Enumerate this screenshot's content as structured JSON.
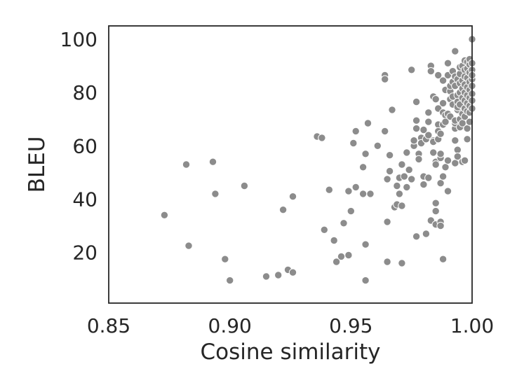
{
  "chart_data": {
    "type": "scatter",
    "title": "",
    "xlabel": "Cosine similarity",
    "ylabel": "BLEU",
    "xlim": [
      0.85,
      1.0
    ],
    "ylim": [
      1,
      105
    ],
    "xticks": [
      "0.85",
      "0.90",
      "0.95",
      "1.00"
    ],
    "xtick_values": [
      0.85,
      0.9,
      0.95,
      1.0
    ],
    "yticks": [
      "20",
      "40",
      "60",
      "80",
      "100"
    ],
    "ytick_values": [
      20,
      40,
      60,
      80,
      100
    ],
    "grid": false,
    "marker_color": "#8c8c8c",
    "points": [
      [
        0.873,
        34
      ],
      [
        0.882,
        53
      ],
      [
        0.883,
        22.5
      ],
      [
        0.893,
        54
      ],
      [
        0.894,
        42
      ],
      [
        0.898,
        17.5
      ],
      [
        0.9,
        9.5
      ],
      [
        0.906,
        45
      ],
      [
        0.915,
        11
      ],
      [
        0.92,
        11.5
      ],
      [
        0.922,
        36
      ],
      [
        0.924,
        13.5
      ],
      [
        0.926,
        12.5
      ],
      [
        0.926,
        41
      ],
      [
        0.936,
        63.5
      ],
      [
        0.938,
        63
      ],
      [
        0.939,
        28.5
      ],
      [
        0.941,
        43.5
      ],
      [
        0.943,
        24.5
      ],
      [
        0.944,
        16.5
      ],
      [
        0.946,
        18.5
      ],
      [
        0.947,
        31
      ],
      [
        0.949,
        19
      ],
      [
        0.949,
        43
      ],
      [
        0.95,
        35.5
      ],
      [
        0.951,
        61
      ],
      [
        0.952,
        65.5
      ],
      [
        0.952,
        44.5
      ],
      [
        0.955,
        52
      ],
      [
        0.955,
        42
      ],
      [
        0.956,
        23
      ],
      [
        0.956,
        9.5
      ],
      [
        0.956,
        57
      ],
      [
        0.957,
        68.5
      ],
      [
        0.958,
        42
      ],
      [
        0.961,
        60
      ],
      [
        0.964,
        86.5
      ],
      [
        0.964,
        85
      ],
      [
        0.964,
        65.5
      ],
      [
        0.965,
        16.5
      ],
      [
        0.965,
        31.5
      ],
      [
        0.965,
        47.5
      ],
      [
        0.966,
        56.5
      ],
      [
        0.966,
        50.5
      ],
      [
        0.967,
        73.5
      ],
      [
        0.968,
        37
      ],
      [
        0.969,
        38
      ],
      [
        0.969,
        45
      ],
      [
        0.97,
        48
      ],
      [
        0.97,
        42
      ],
      [
        0.971,
        37.5
      ],
      [
        0.971,
        53
      ],
      [
        0.971,
        16
      ],
      [
        0.972,
        48.5
      ],
      [
        0.973,
        57.5
      ],
      [
        0.973,
        44.5
      ],
      [
        0.974,
        51
      ],
      [
        0.975,
        88.5
      ],
      [
        0.975,
        47.5
      ],
      [
        0.976,
        60
      ],
      [
        0.976,
        62
      ],
      [
        0.977,
        69.5
      ],
      [
        0.977,
        76.5
      ],
      [
        0.977,
        66.5
      ],
      [
        0.977,
        26
      ],
      [
        0.978,
        57
      ],
      [
        0.978,
        55
      ],
      [
        0.979,
        63
      ],
      [
        0.979,
        61
      ],
      [
        0.98,
        45.5
      ],
      [
        0.98,
        48.5
      ],
      [
        0.98,
        66
      ],
      [
        0.981,
        27
      ],
      [
        0.981,
        62.5
      ],
      [
        0.982,
        72.5
      ],
      [
        0.982,
        69
      ],
      [
        0.982,
        48
      ],
      [
        0.982,
        64
      ],
      [
        0.983,
        90
      ],
      [
        0.983,
        32
      ],
      [
        0.983,
        88
      ],
      [
        0.984,
        57.5
      ],
      [
        0.984,
        62
      ],
      [
        0.984,
        61.5
      ],
      [
        0.984,
        78.5
      ],
      [
        0.985,
        30.5
      ],
      [
        0.985,
        35.5
      ],
      [
        0.985,
        38.5
      ],
      [
        0.985,
        77.5
      ],
      [
        0.985,
        54
      ],
      [
        0.985,
        53
      ],
      [
        0.986,
        74
      ],
      [
        0.986,
        68
      ],
      [
        0.986,
        65.5
      ],
      [
        0.986,
        62.5
      ],
      [
        0.986,
        86.5
      ],
      [
        0.987,
        55.5
      ],
      [
        0.987,
        57
      ],
      [
        0.987,
        64.5
      ],
      [
        0.987,
        31.5
      ],
      [
        0.987,
        30
      ],
      [
        0.987,
        46
      ],
      [
        0.988,
        17.5
      ],
      [
        0.988,
        48.5
      ],
      [
        0.988,
        84.5
      ],
      [
        0.988,
        76
      ],
      [
        0.988,
        72.5
      ],
      [
        0.988,
        68
      ],
      [
        0.989,
        52
      ],
      [
        0.989,
        81
      ],
      [
        0.989,
        71.5
      ],
      [
        0.989,
        69
      ],
      [
        0.99,
        43
      ],
      [
        0.99,
        86.5
      ],
      [
        0.99,
        91
      ],
      [
        0.99,
        72
      ],
      [
        0.99,
        54.5
      ],
      [
        0.991,
        77.5
      ],
      [
        0.991,
        80.5
      ],
      [
        0.991,
        82.5
      ],
      [
        0.991,
        71
      ],
      [
        0.992,
        75.5
      ],
      [
        0.992,
        88
      ],
      [
        0.992,
        84
      ],
      [
        0.992,
        78.5
      ],
      [
        0.993,
        53.5
      ],
      [
        0.993,
        62
      ],
      [
        0.993,
        66.5
      ],
      [
        0.993,
        68.5
      ],
      [
        0.993,
        69.5
      ],
      [
        0.993,
        95.5
      ],
      [
        0.993,
        86
      ],
      [
        0.993,
        82.5
      ],
      [
        0.994,
        85
      ],
      [
        0.994,
        79
      ],
      [
        0.994,
        76.5
      ],
      [
        0.994,
        73.5
      ],
      [
        0.994,
        74.5
      ],
      [
        0.994,
        58.5
      ],
      [
        0.994,
        56
      ],
      [
        0.995,
        80
      ],
      [
        0.995,
        83.5
      ],
      [
        0.995,
        87
      ],
      [
        0.995,
        70
      ],
      [
        0.995,
        67
      ],
      [
        0.995,
        89.5
      ],
      [
        0.995,
        75.5
      ],
      [
        0.996,
        54
      ],
      [
        0.996,
        84.5
      ],
      [
        0.996,
        81.5
      ],
      [
        0.996,
        78
      ],
      [
        0.996,
        90
      ],
      [
        0.996,
        68.5
      ],
      [
        0.996,
        72
      ],
      [
        0.997,
        88.5
      ],
      [
        0.997,
        86
      ],
      [
        0.997,
        83
      ],
      [
        0.997,
        80
      ],
      [
        0.997,
        77
      ],
      [
        0.997,
        74
      ],
      [
        0.997,
        71
      ],
      [
        0.997,
        92
      ],
      [
        0.997,
        54.5
      ],
      [
        0.998,
        89
      ],
      [
        0.998,
        85.5
      ],
      [
        0.998,
        82
      ],
      [
        0.998,
        79
      ],
      [
        0.998,
        76
      ],
      [
        0.998,
        73
      ],
      [
        0.998,
        66.5
      ],
      [
        0.998,
        62.5
      ],
      [
        0.998,
        91.5
      ],
      [
        0.999,
        90.5
      ],
      [
        0.999,
        87.5
      ],
      [
        0.999,
        84
      ],
      [
        0.999,
        81
      ],
      [
        0.999,
        78
      ],
      [
        0.999,
        75
      ],
      [
        0.999,
        72.5
      ],
      [
        0.999,
        69
      ],
      [
        0.999,
        92.5
      ],
      [
        1.0,
        100
      ],
      [
        1.0,
        88.5
      ],
      [
        1.0,
        85
      ],
      [
        1.0,
        82.5
      ],
      [
        1.0,
        79.5
      ],
      [
        1.0,
        77
      ],
      [
        1.0,
        74
      ],
      [
        1.0,
        91
      ],
      [
        1.0,
        86.5
      ]
    ]
  }
}
